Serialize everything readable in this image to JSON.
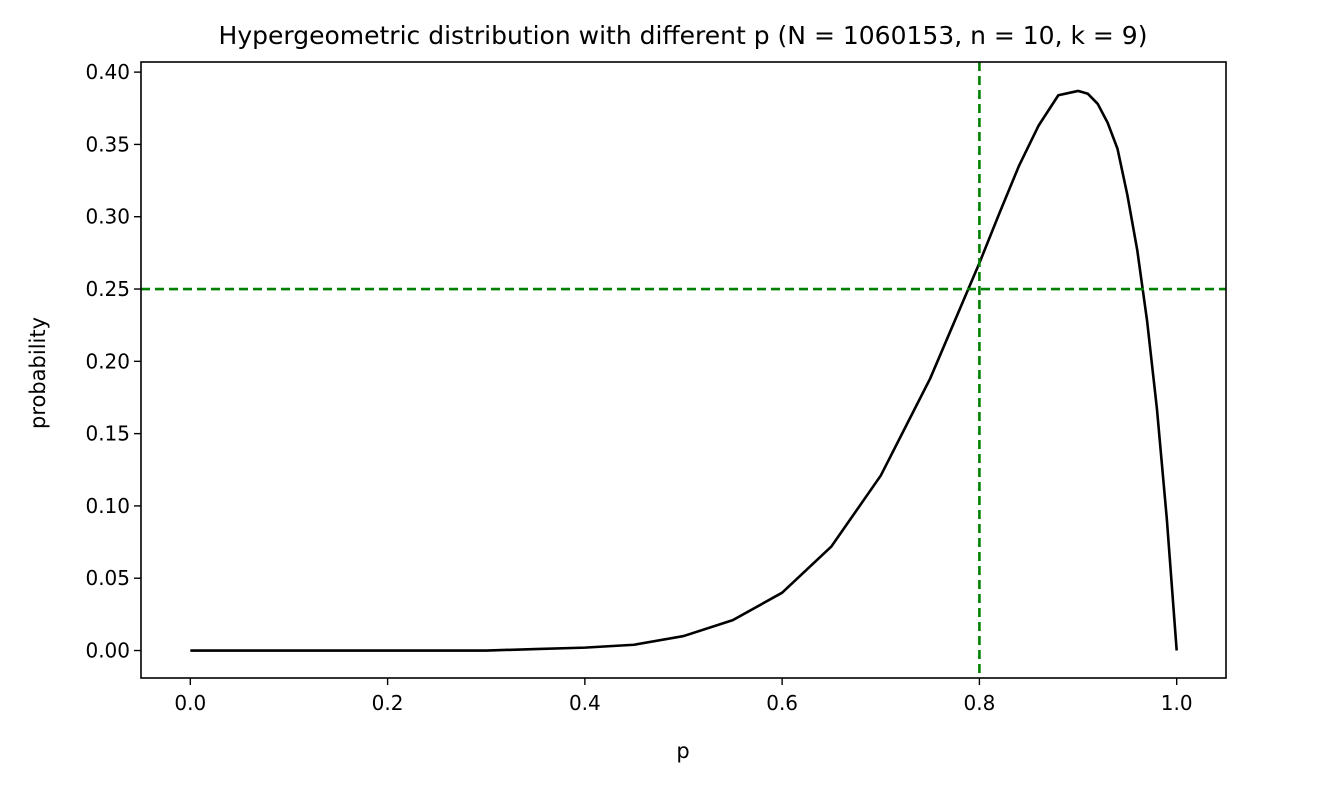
{
  "chart_data": {
    "type": "line",
    "title": "Hypergeometric distribution with different p (N = 1060153, n = 10, k = 9)",
    "xlabel": "p",
    "ylabel": "probability",
    "xlim": [
      -0.05,
      1.05
    ],
    "ylim": [
      -0.019,
      0.407
    ],
    "xticks": [
      "0.0",
      "0.2",
      "0.4",
      "0.6",
      "0.8",
      "1.0"
    ],
    "xtick_values": [
      0.0,
      0.2,
      0.4,
      0.6,
      0.8,
      1.0
    ],
    "yticks": [
      "0.00",
      "0.05",
      "0.10",
      "0.15",
      "0.20",
      "0.25",
      "0.30",
      "0.35",
      "0.40"
    ],
    "ytick_values": [
      0.0,
      0.05,
      0.1,
      0.15,
      0.2,
      0.25,
      0.3,
      0.35,
      0.4
    ],
    "grid": false,
    "series": [
      {
        "color": "#000000",
        "x": [
          0.0,
          0.05,
          0.1,
          0.15,
          0.2,
          0.25,
          0.3,
          0.35,
          0.4,
          0.45,
          0.5,
          0.55,
          0.6,
          0.65,
          0.7,
          0.75,
          0.8,
          0.82,
          0.84,
          0.86,
          0.88,
          0.9,
          0.91,
          0.92,
          0.93,
          0.94,
          0.95,
          0.96,
          0.97,
          0.98,
          0.99,
          1.0
        ],
        "y": [
          0.0,
          0.0,
          0.0,
          0.0,
          0.0,
          0.0,
          0.0,
          0.001,
          0.002,
          0.004,
          0.01,
          0.021,
          0.04,
          0.072,
          0.121,
          0.188,
          0.268,
          0.302,
          0.335,
          0.363,
          0.384,
          0.387,
          0.385,
          0.378,
          0.365,
          0.347,
          0.315,
          0.277,
          0.228,
          0.167,
          0.091,
          0.0
        ]
      }
    ],
    "reference_lines": [
      {
        "orientation": "vertical",
        "value": 0.8,
        "color": "#008000",
        "style": "dashed"
      },
      {
        "orientation": "horizontal",
        "value": 0.25,
        "color": "#008000",
        "style": "dashed"
      }
    ]
  }
}
